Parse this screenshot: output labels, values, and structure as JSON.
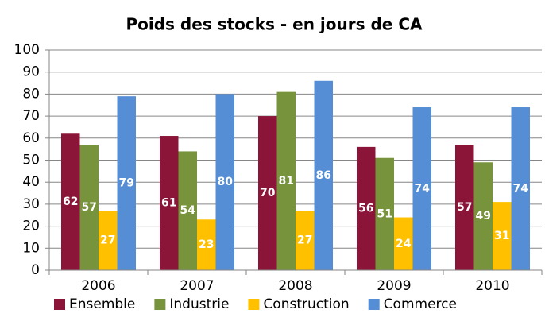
{
  "chart_data": {
    "type": "bar",
    "title": "Poids des stocks - en jours de CA",
    "categories": [
      "2006",
      "2007",
      "2008",
      "2009",
      "2010"
    ],
    "series": [
      {
        "name": "Ensemble",
        "color": "#8b1538",
        "values": [
          62,
          61,
          70,
          56,
          57
        ]
      },
      {
        "name": "Industrie",
        "color": "#77933c",
        "values": [
          57,
          54,
          81,
          51,
          49
        ]
      },
      {
        "name": "Construction",
        "color": "#ffc000",
        "values": [
          27,
          23,
          27,
          24,
          31
        ]
      },
      {
        "name": "Commerce",
        "color": "#558ed5",
        "values": [
          79,
          80,
          86,
          74,
          74
        ]
      }
    ],
    "ylim": [
      0,
      100
    ],
    "yticks": [
      0,
      10,
      20,
      30,
      40,
      50,
      60,
      70,
      80,
      90,
      100
    ],
    "grid": true,
    "legend": "bottom"
  }
}
